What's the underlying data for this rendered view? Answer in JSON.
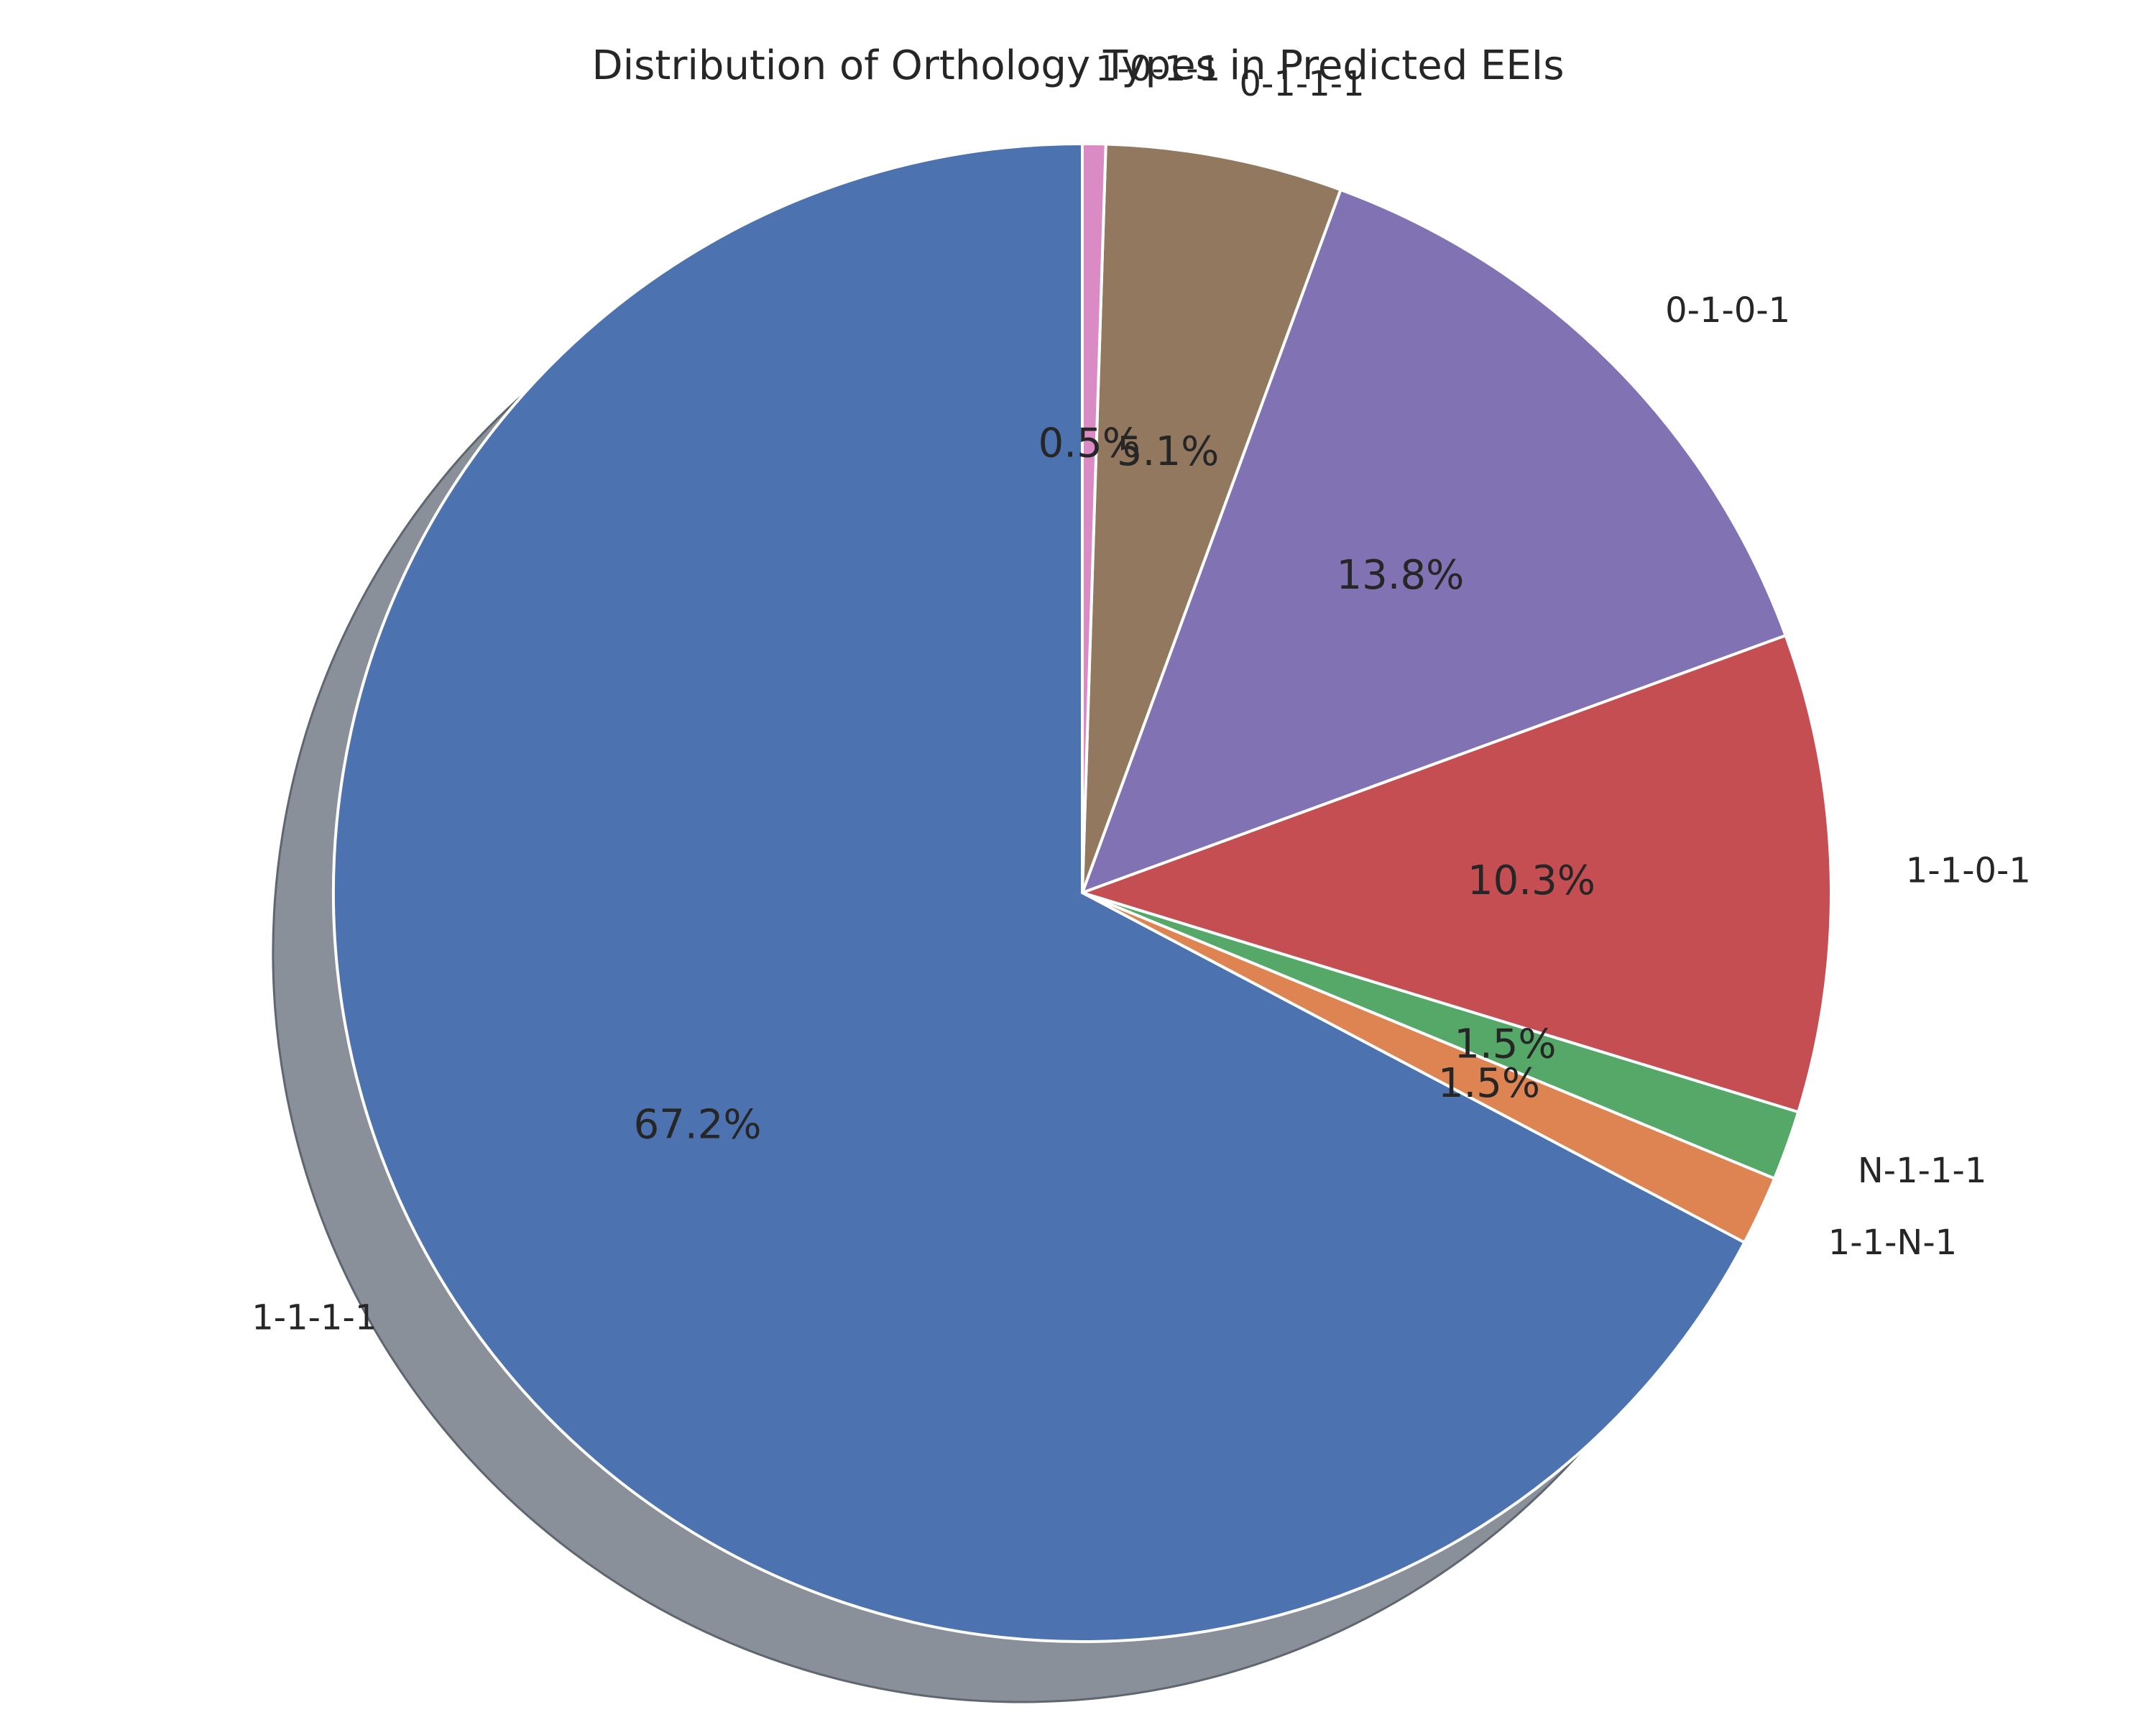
{
  "chart_data": {
    "type": "pie",
    "title": "Distribution of Orthology Types in Predicted EEIs",
    "start_angle_deg": 90,
    "direction": "counterclockwise",
    "shadow": true,
    "shadow_color": "#8a9099",
    "slice_edge_color": "#ffffff",
    "slices": [
      {
        "label": "1-1-1-1",
        "value": 67.2,
        "pct_label": "67.2%",
        "color": "#4c72b0"
      },
      {
        "label": "1-1-N-1",
        "value": 1.5,
        "pct_label": "1.5%",
        "color": "#dd8452"
      },
      {
        "label": "N-1-1-1",
        "value": 1.5,
        "pct_label": "1.5%",
        "color": "#55a868"
      },
      {
        "label": "1-1-0-1",
        "value": 10.3,
        "pct_label": "10.3%",
        "color": "#c44e52"
      },
      {
        "label": "0-1-0-1",
        "value": 13.8,
        "pct_label": "13.8%",
        "color": "#8172b3"
      },
      {
        "label": "0-1-1-1",
        "value": 5.1,
        "pct_label": "5.1%",
        "color": "#937860"
      },
      {
        "label": "1-0-1-1",
        "value": 0.5,
        "pct_label": "0.5%",
        "color": "#da8bc3"
      }
    ]
  }
}
